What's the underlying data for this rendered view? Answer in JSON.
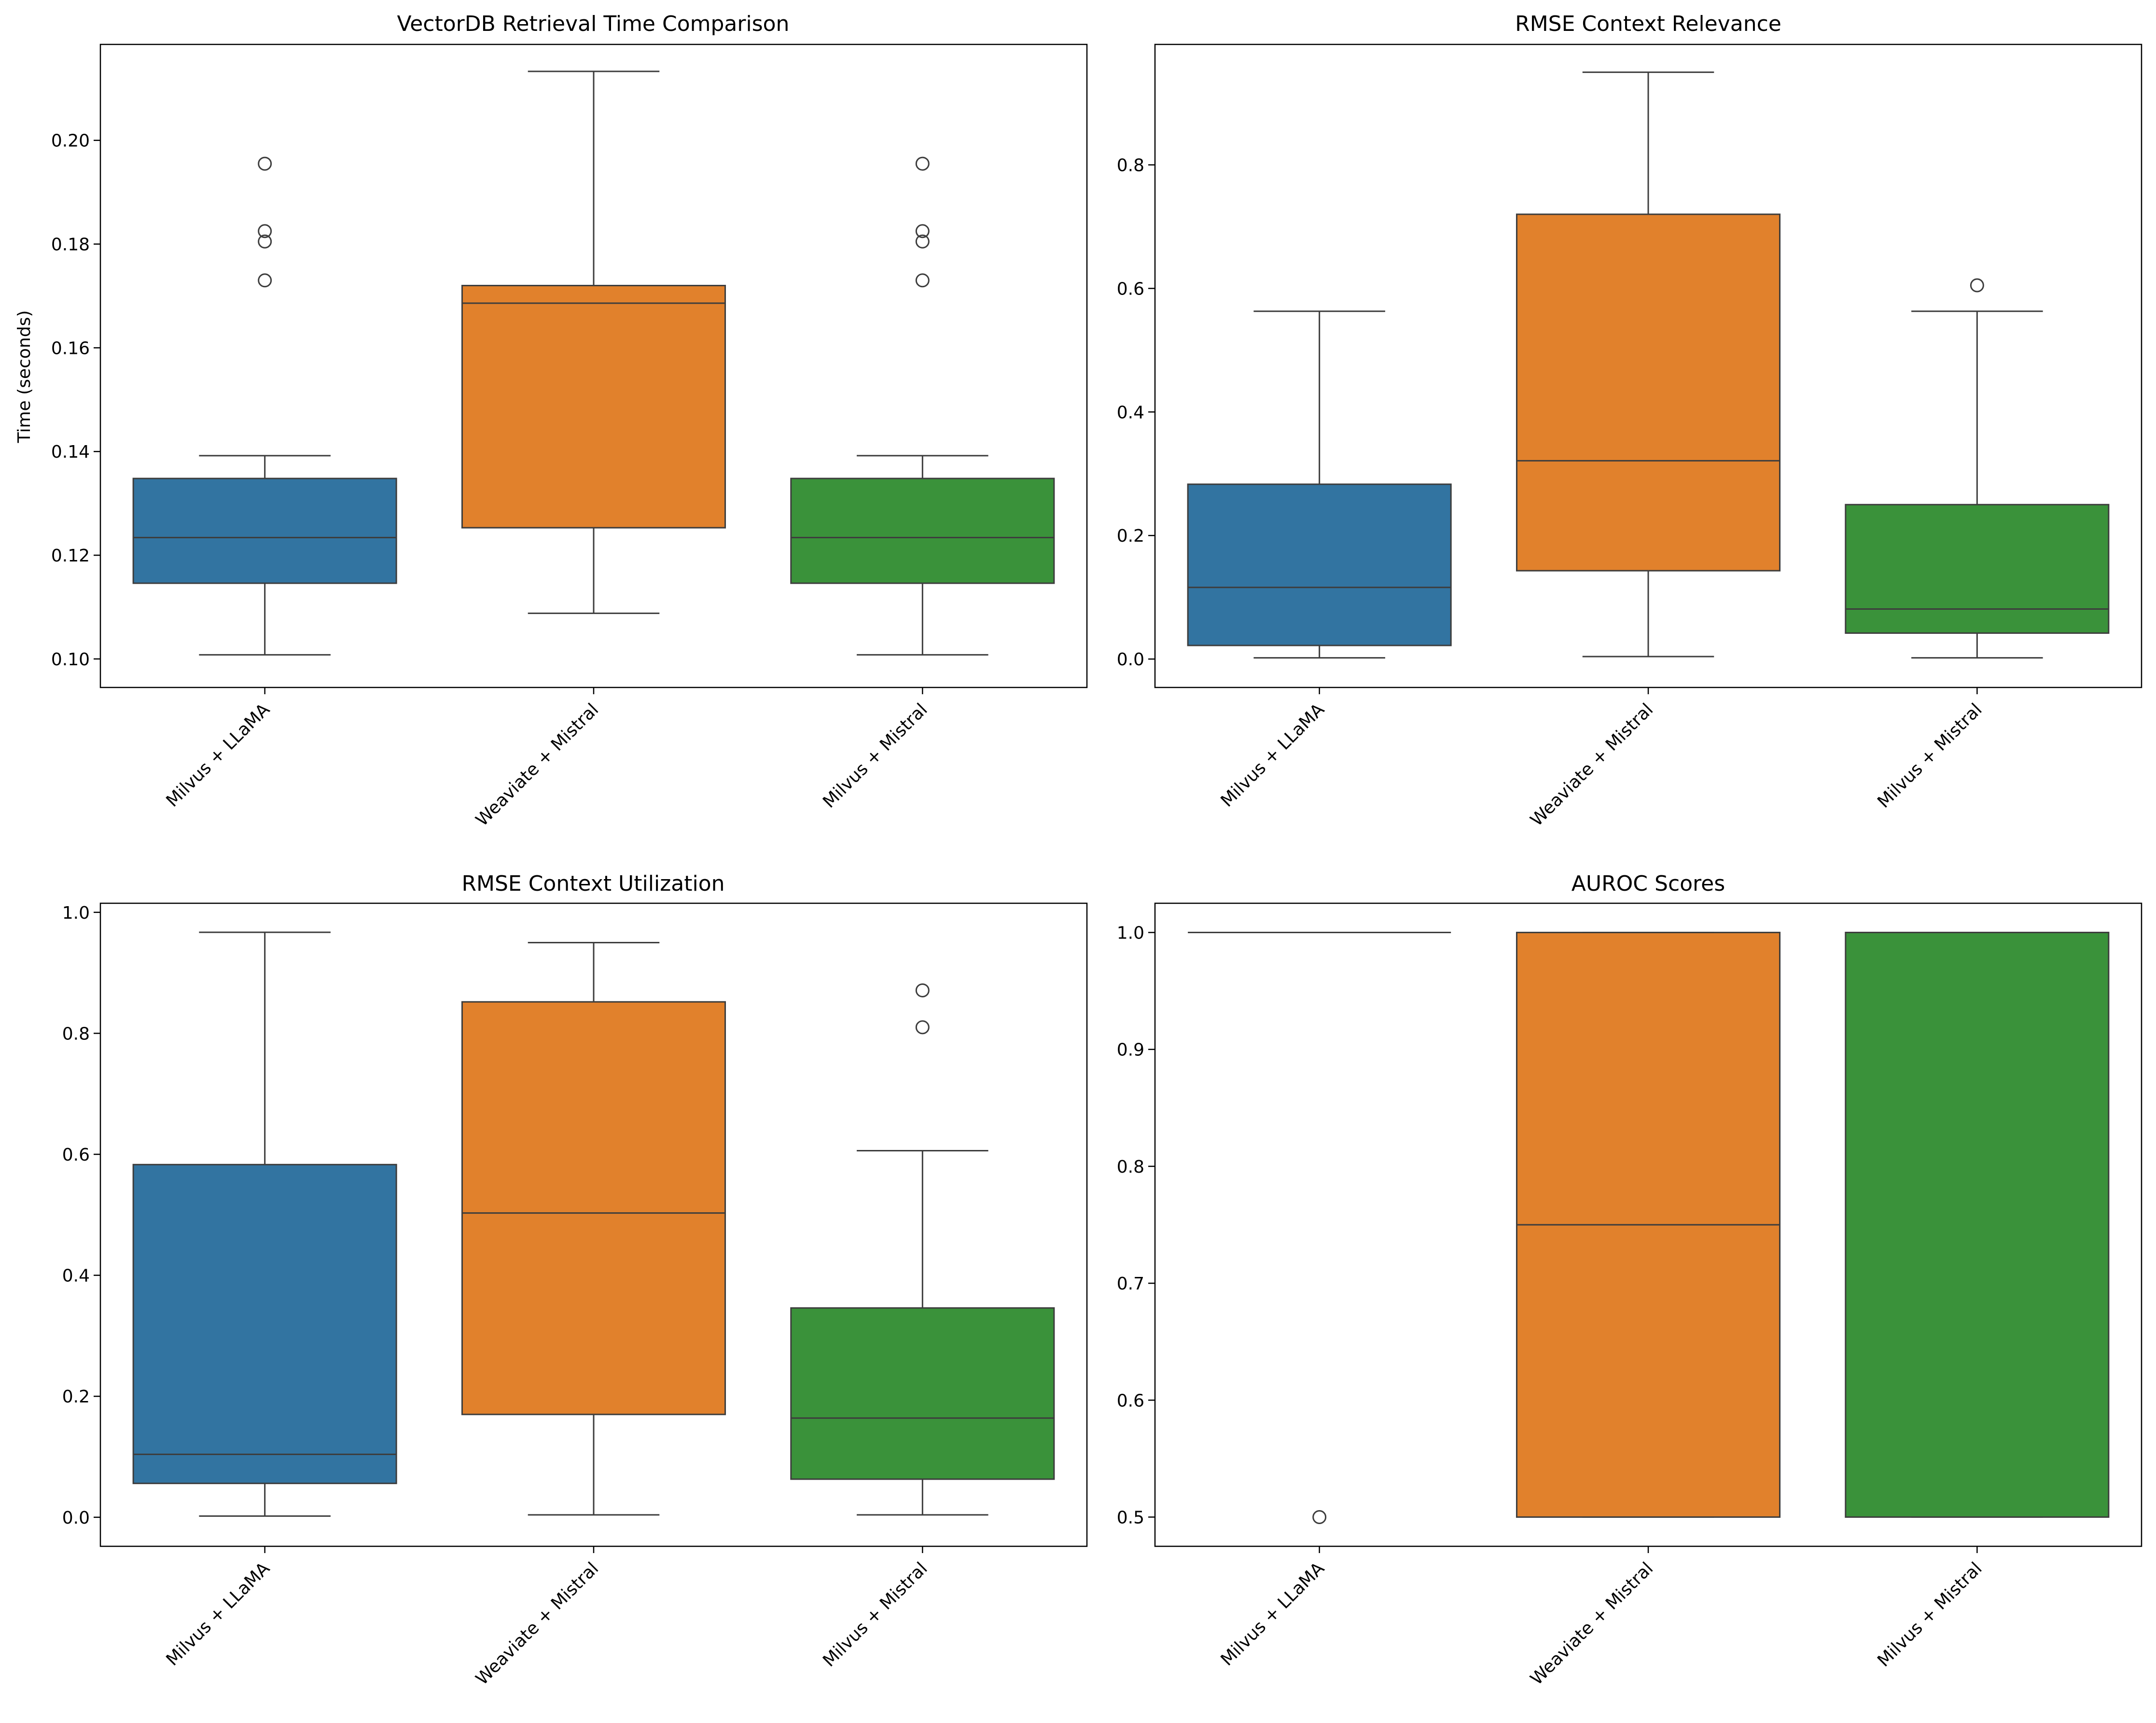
{
  "chart_data": [
    {
      "type": "box",
      "title": "VectorDB Retrieval Time Comparison",
      "xlabel": "",
      "ylabel": "Time (seconds)",
      "ylim": [
        0.0945,
        0.2185
      ],
      "yticks": [
        0.1,
        0.12,
        0.14,
        0.16,
        0.18,
        0.2
      ],
      "tick_decimals": 2,
      "categories": [
        "Milvus + LLaMA",
        "Weaviate + Mistral",
        "Milvus + Mistral"
      ],
      "colors": [
        "#3274a1",
        "#e1812c",
        "#3a923a"
      ],
      "boxes": [
        {
          "whislo": 0.1008,
          "q1": 0.1146,
          "med": 0.1234,
          "q3": 0.1348,
          "whishi": 0.1392,
          "fliers": [
            0.173,
            0.1805,
            0.1825,
            0.1955
          ]
        },
        {
          "whislo": 0.1088,
          "q1": 0.1253,
          "med": 0.1686,
          "q3": 0.172,
          "whishi": 0.2133,
          "fliers": []
        },
        {
          "whislo": 0.1008,
          "q1": 0.1146,
          "med": 0.1234,
          "q3": 0.1348,
          "whishi": 0.1392,
          "fliers": [
            0.173,
            0.1805,
            0.1825,
            0.1955
          ]
        }
      ]
    },
    {
      "type": "box",
      "title": "RMSE Context Relevance",
      "xlabel": "",
      "ylabel": "",
      "ylim": [
        -0.046,
        0.995
      ],
      "yticks": [
        0.0,
        0.2,
        0.4,
        0.6,
        0.8
      ],
      "tick_decimals": 1,
      "categories": [
        "Milvus + LLaMA",
        "Weaviate + Mistral",
        "Milvus + Mistral"
      ],
      "colors": [
        "#3274a1",
        "#e1812c",
        "#3a923a"
      ],
      "boxes": [
        {
          "whislo": 0.002,
          "q1": 0.022,
          "med": 0.116,
          "q3": 0.283,
          "whishi": 0.563,
          "fliers": []
        },
        {
          "whislo": 0.004,
          "q1": 0.143,
          "med": 0.321,
          "q3": 0.72,
          "whishi": 0.95,
          "fliers": []
        },
        {
          "whislo": 0.002,
          "q1": 0.042,
          "med": 0.081,
          "q3": 0.25,
          "whishi": 0.563,
          "fliers": [
            0.605
          ]
        }
      ]
    },
    {
      "type": "box",
      "title": "RMSE Context Utilization",
      "xlabel": "",
      "ylabel": "",
      "ylim": [
        -0.048,
        1.015
      ],
      "yticks": [
        0.0,
        0.2,
        0.4,
        0.6,
        0.8,
        1.0
      ],
      "tick_decimals": 1,
      "categories": [
        "Milvus + LLaMA",
        "Weaviate + Mistral",
        "Milvus + Mistral"
      ],
      "colors": [
        "#3274a1",
        "#e1812c",
        "#3a923a"
      ],
      "boxes": [
        {
          "whislo": 0.002,
          "q1": 0.056,
          "med": 0.104,
          "q3": 0.583,
          "whishi": 0.967,
          "fliers": []
        },
        {
          "whislo": 0.004,
          "q1": 0.17,
          "med": 0.503,
          "q3": 0.852,
          "whishi": 0.95,
          "fliers": []
        },
        {
          "whislo": 0.004,
          "q1": 0.063,
          "med": 0.164,
          "q3": 0.346,
          "whishi": 0.606,
          "fliers": [
            0.81,
            0.871
          ]
        }
      ]
    },
    {
      "type": "box",
      "title": "AUROC Scores",
      "xlabel": "",
      "ylabel": "",
      "ylim": [
        0.475,
        1.025
      ],
      "yticks": [
        0.5,
        0.6,
        0.7,
        0.8,
        0.9,
        1.0
      ],
      "tick_decimals": 1,
      "categories": [
        "Milvus + LLaMA",
        "Weaviate + Mistral",
        "Milvus + Mistral"
      ],
      "colors": [
        "#3274a1",
        "#e1812c",
        "#3a923a"
      ],
      "boxes": [
        {
          "whislo": 1.0,
          "q1": 1.0,
          "med": 1.0,
          "q3": 1.0,
          "whishi": 1.0,
          "fliers": [
            0.5
          ]
        },
        {
          "whislo": 0.5,
          "q1": 0.5,
          "med": 0.75,
          "q3": 1.0,
          "whishi": 1.0,
          "fliers": []
        },
        {
          "whislo": 0.5,
          "q1": 0.5,
          "med": 1.0,
          "q3": 1.0,
          "whishi": 1.0,
          "fliers": []
        }
      ]
    }
  ]
}
